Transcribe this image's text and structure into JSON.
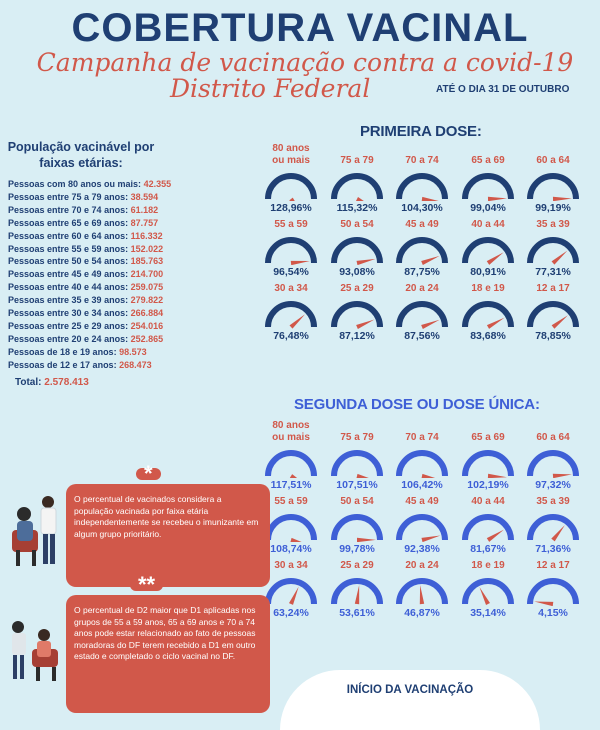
{
  "header": {
    "title": "COBERTURA VACINAL",
    "subtitle_line1": "Campanha de vacinação contra a covid-19",
    "subtitle_line2": "Distrito Federal",
    "until": "ATÉ O DIA 31 DE OUTUBRO"
  },
  "population": {
    "title": "População vacinável por faixas etárias:",
    "rows": [
      {
        "label": "Pessoas com 80 anos ou mais:",
        "value": "42.355"
      },
      {
        "label": "Pessoas entre 75 a 79 anos:",
        "value": "38.594"
      },
      {
        "label": "Pessoas entre 70 e 74 anos:",
        "value": "61.182"
      },
      {
        "label": "Pessoas entre 65 e 69 anos:",
        "value": "87.757"
      },
      {
        "label": "Pessoas entre 60 e 64 anos:",
        "value": "116.332"
      },
      {
        "label": "Pessoas entre 55 e 59 anos:",
        "value": "152.022"
      },
      {
        "label": "Pessoas entre 50 e 54 anos:",
        "value": "185.763"
      },
      {
        "label": "Pessoas entre 45 e 49 anos:",
        "value": "214.700"
      },
      {
        "label": "Pessoas entre 40 e 44 anos:",
        "value": "259.075"
      },
      {
        "label": "Pessoas entre 35 e 39 anos:",
        "value": "279.822"
      },
      {
        "label": "Pessoas entre 30 e 34 anos:",
        "value": "266.884"
      },
      {
        "label": "Pessoas entre 25 e 29 anos:",
        "value": "254.016"
      },
      {
        "label": "Pessoas entre 20 e 24 anos:",
        "value": "252.865"
      },
      {
        "label": "Pessoas de 18 e 19 anos:",
        "value": "98.573"
      },
      {
        "label": "Pessoas de 12 e 17 anos:",
        "value": "268.473"
      }
    ],
    "total_label": "Total:",
    "total_value": "2.578.413"
  },
  "first_dose": {
    "title": "PRIMEIRA DOSE:",
    "color": "#1f3f73",
    "gauges": [
      {
        "label": "80 anos ou mais",
        "pct": "128,96%",
        "value": 128.96
      },
      {
        "label": "75 a 79",
        "pct": "115,32%",
        "value": 115.32
      },
      {
        "label": "70 a 74",
        "pct": "104,30%",
        "value": 104.3
      },
      {
        "label": "65 a 69",
        "pct": "99,04%",
        "value": 99.04
      },
      {
        "label": "60 a 64",
        "pct": "99,19%",
        "value": 99.19
      },
      {
        "label": "55 a 59",
        "pct": "96,54%",
        "value": 96.54
      },
      {
        "label": "50 a 54",
        "pct": "93,08%",
        "value": 93.08
      },
      {
        "label": "45 a 49",
        "pct": "87,75%",
        "value": 87.75
      },
      {
        "label": "40 a 44",
        "pct": "80,91%",
        "value": 80.91
      },
      {
        "label": "35 a 39",
        "pct": "77,31%",
        "value": 77.31
      },
      {
        "label": "30 a 34",
        "pct": "76,48%",
        "value": 76.48
      },
      {
        "label": "25 a 29",
        "pct": "87,12%",
        "value": 87.12
      },
      {
        "label": "20 a 24",
        "pct": "87,56%",
        "value": 87.56
      },
      {
        "label": "18 e 19",
        "pct": "83,68%",
        "value": 83.68
      },
      {
        "label": "12 a 17",
        "pct": "78,85%",
        "value": 78.85
      }
    ]
  },
  "second_dose": {
    "title": "SEGUNDA DOSE OU DOSE ÚNICA:",
    "color": "#3e5fd6",
    "gauges": [
      {
        "label": "80 anos ou mais",
        "pct": "117,51%",
        "value": 117.51
      },
      {
        "label": "75 a 79",
        "pct": "107,51%",
        "value": 107.51
      },
      {
        "label": "70 a 74",
        "pct": "106,42%",
        "value": 106.42
      },
      {
        "label": "65 a 69",
        "pct": "102,19%",
        "value": 102.19
      },
      {
        "label": "60 a 64",
        "pct": "97,32%",
        "value": 97.32
      },
      {
        "label": "55 a 59",
        "pct": "108,74%",
        "value": 108.74
      },
      {
        "label": "50 a 54",
        "pct": "99,78%",
        "value": 99.78
      },
      {
        "label": "45 a 49",
        "pct": "92,38%",
        "value": 92.38
      },
      {
        "label": "40 a 44",
        "pct": "81,67%",
        "value": 81.67
      },
      {
        "label": "35 a 39",
        "pct": "71,36%",
        "value": 71.36
      },
      {
        "label": "30 a 34",
        "pct": "63,24%",
        "value": 63.24
      },
      {
        "label": "25 a 29",
        "pct": "53,61%",
        "value": 53.61
      },
      {
        "label": "20 a 24",
        "pct": "46,87%",
        "value": 46.87
      },
      {
        "label": "18 e 19",
        "pct": "35,14%",
        "value": 35.14
      },
      {
        "label": "12 a 17",
        "pct": "4,15%",
        "value": 4.15
      }
    ]
  },
  "notes": [
    {
      "mark": "*",
      "text": "O percentual de vacinados considera a população vacinada por faixa etária independentemente se recebeu o imunizante em algum grupo prioritário."
    },
    {
      "mark": "**",
      "text": "O percentual de D2 maior que D1 aplicadas nos grupos de 55 a 59 anos, 65 a 69 anos e 70 a 74 anos pode estar relacionado ao fato de pessoas moradoras do DF terem recebido a D1 em outro estado e completado o ciclo vacinal no DF."
    }
  ],
  "footer": {
    "inicio": "INÍCIO DA VACINAÇÃO"
  },
  "colors": {
    "navy": "#1f3f73",
    "coral": "#d1584a",
    "blue": "#3e5fd6",
    "background": "#d9eef4"
  }
}
